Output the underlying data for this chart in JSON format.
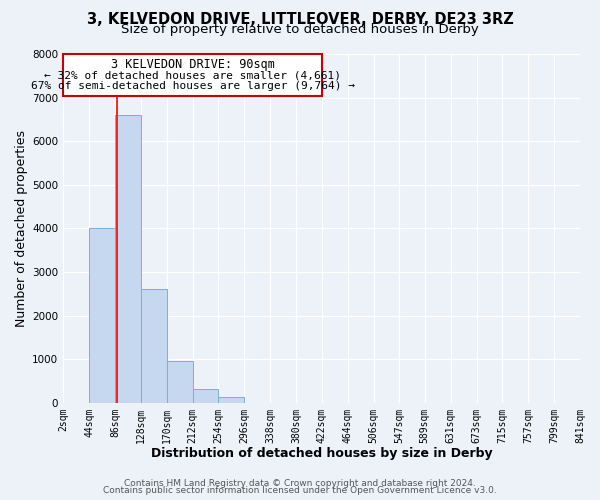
{
  "title_line1": "3, KELVEDON DRIVE, LITTLEOVER, DERBY, DE23 3RZ",
  "title_line2": "Size of property relative to detached houses in Derby",
  "xlabel": "Distribution of detached houses by size in Derby",
  "ylabel": "Number of detached properties",
  "bar_edges": [
    2,
    44,
    86,
    128,
    170,
    212,
    254,
    296,
    338,
    380,
    422,
    464,
    506,
    547,
    589,
    631,
    673,
    715,
    757,
    799,
    841
  ],
  "bar_heights": [
    0,
    4000,
    6600,
    2600,
    950,
    320,
    130,
    0,
    0,
    0,
    0,
    0,
    0,
    0,
    0,
    0,
    0,
    0,
    0,
    0
  ],
  "bar_color": "#c5d8ef",
  "bar_edgecolor": "#7bafd4",
  "ylim": [
    0,
    8000
  ],
  "tick_labels": [
    "2sqm",
    "44sqm",
    "86sqm",
    "128sqm",
    "170sqm",
    "212sqm",
    "254sqm",
    "296sqm",
    "338sqm",
    "380sqm",
    "422sqm",
    "464sqm",
    "506sqm",
    "547sqm",
    "589sqm",
    "631sqm",
    "673sqm",
    "715sqm",
    "757sqm",
    "799sqm",
    "841sqm"
  ],
  "red_line_x": 90,
  "annotation_title": "3 KELVEDON DRIVE: 90sqm",
  "annotation_line1": "← 32% of detached houses are smaller (4,661)",
  "annotation_line2": "67% of semi-detached houses are larger (9,764) →",
  "annotation_box_facecolor": "#ffffff",
  "annotation_box_edgecolor": "#cc0000",
  "footer_line1": "Contains HM Land Registry data © Crown copyright and database right 2024.",
  "footer_line2": "Contains public sector information licensed under the Open Government Licence v3.0.",
  "background_color": "#edf2f9",
  "grid_color": "#ffffff",
  "title_fontsize": 10.5,
  "subtitle_fontsize": 9.5,
  "axis_label_fontsize": 9,
  "tick_fontsize": 7,
  "annotation_title_fontsize": 8.5,
  "annotation_text_fontsize": 8,
  "footer_fontsize": 6.5
}
